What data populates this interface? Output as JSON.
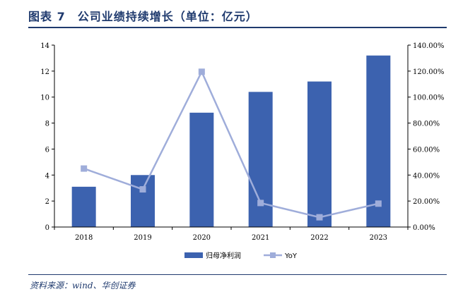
{
  "figure": {
    "title": "图表 7　公司业绩持续增长（单位：亿元）",
    "source": "资料来源：wind、华创证券"
  },
  "colors": {
    "bar": "#3C62AF",
    "line": "#9FADDA",
    "marker": "#9FADDA",
    "header": "#1F3A6E",
    "axis": "#000000"
  },
  "chart_data": {
    "type": "bar",
    "categories": [
      "2018",
      "2019",
      "2020",
      "2021",
      "2022",
      "2023"
    ],
    "series": [
      {
        "name": "归母净利润",
        "type": "bar",
        "axis": "left",
        "values": [
          3.1,
          4.0,
          8.8,
          10.4,
          11.2,
          13.2
        ]
      },
      {
        "name": "YoY",
        "type": "line",
        "axis": "right",
        "values": [
          45.0,
          29.0,
          119.5,
          18.5,
          7.5,
          18.0
        ]
      }
    ],
    "y_left": {
      "min": 0,
      "max": 14,
      "ticks": [
        "0",
        "2",
        "4",
        "6",
        "8",
        "10",
        "12",
        "14"
      ]
    },
    "y_right": {
      "min": 0,
      "max": 140,
      "ticks": [
        "0.00%",
        "20.00%",
        "40.00%",
        "60.00%",
        "80.00%",
        "100.00%",
        "120.00%",
        "140.00%"
      ]
    },
    "legend_position": "bottom-center",
    "grid": false
  }
}
